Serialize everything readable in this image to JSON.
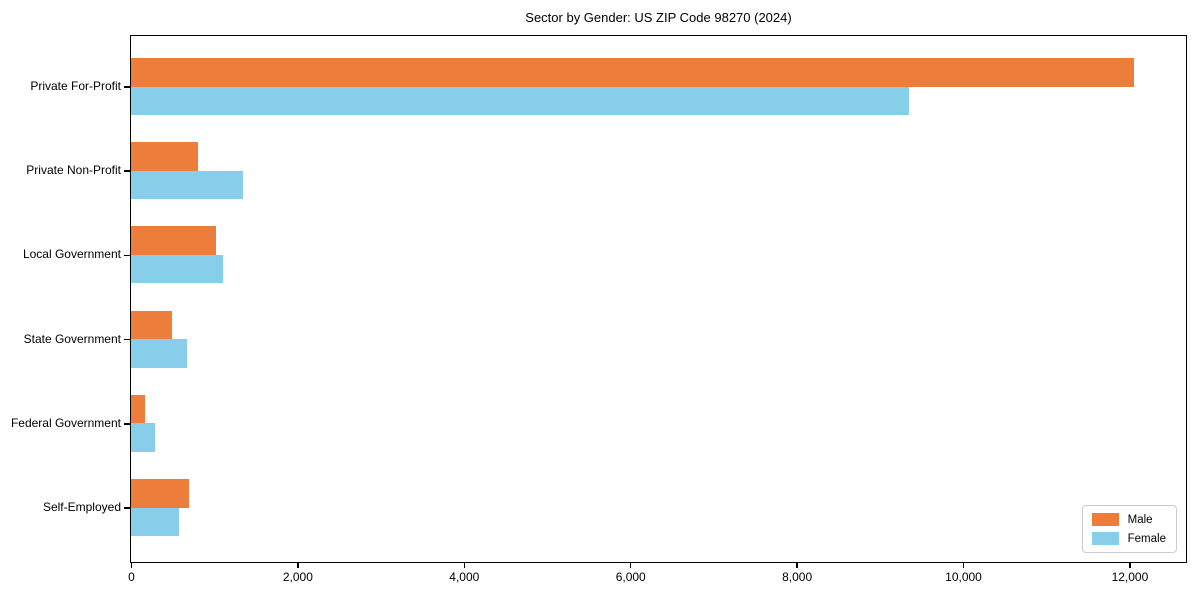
{
  "title": "Sector by Gender: US ZIP Code 98270 (2024)",
  "chart_data": {
    "type": "bar",
    "orientation": "horizontal",
    "title": "Sector by Gender: US ZIP Code 98270 (2024)",
    "categories": [
      "Private For-Profit",
      "Private Non-Profit",
      "Local Government",
      "State Government",
      "Federal Government",
      "Self-Employed"
    ],
    "series": [
      {
        "name": "Male",
        "color": "#ec7d3b",
        "values": [
          12050,
          800,
          1020,
          490,
          170,
          700
        ]
      },
      {
        "name": "Female",
        "color": "#87ceeb",
        "values": [
          9350,
          1350,
          1100,
          670,
          290,
          580
        ]
      }
    ],
    "xlabel": "",
    "ylabel": "",
    "xlim": [
      0,
      12680
    ],
    "x_ticks": [
      0,
      2000,
      4000,
      6000,
      8000,
      10000,
      12000
    ],
    "x_tick_labels": [
      "0",
      "2,000",
      "4,000",
      "6,000",
      "8,000",
      "10,000",
      "12,000"
    ],
    "grid": false,
    "legend_position": "lower right"
  }
}
